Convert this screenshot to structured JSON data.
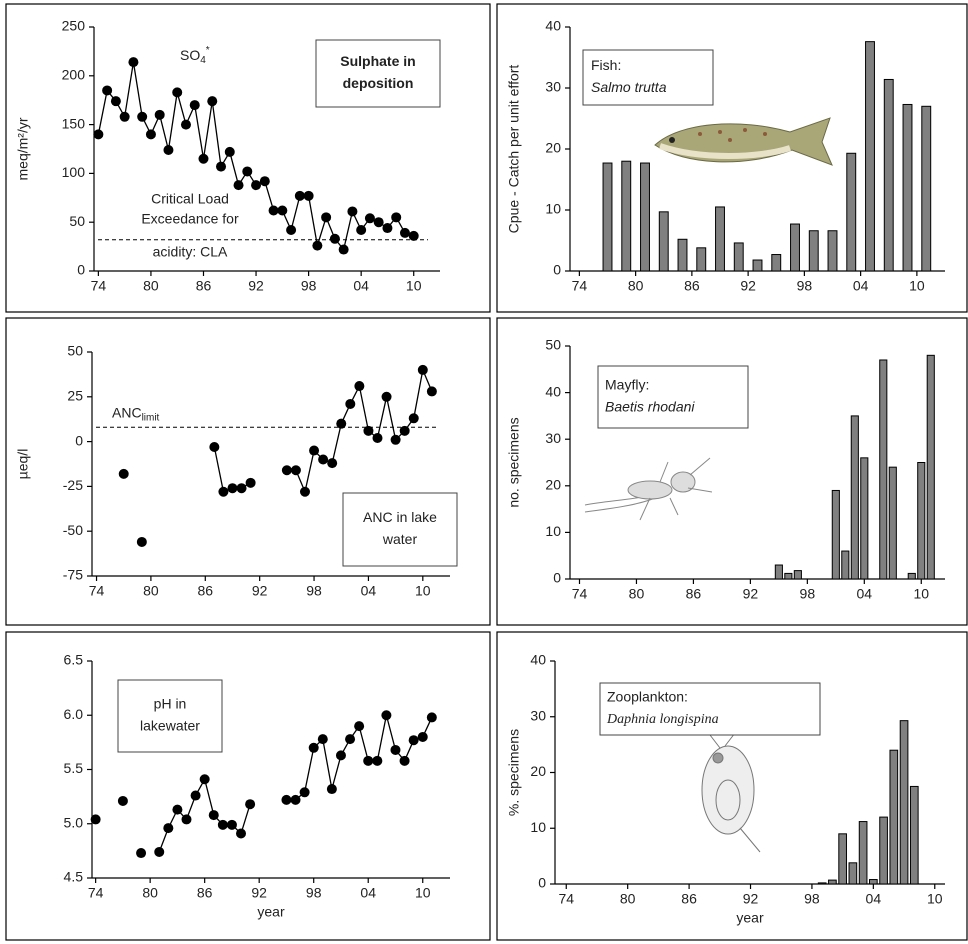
{
  "chart_data": [
    {
      "type": "line",
      "title_lines": [
        "Sulphate in",
        "deposition"
      ],
      "ylabel": "meq/m²/yr",
      "annotation": {
        "text": "SO",
        "sub": "4",
        "sup": "*"
      },
      "reference_line": {
        "value": 32,
        "label_lines": [
          "Critical Load",
          "Exceedance for",
          "acidity: CLA"
        ]
      },
      "color": "#000000",
      "x": [
        1974,
        1975,
        1976,
        1977,
        1978,
        1979,
        1980,
        1981,
        1982,
        1983,
        1984,
        1985,
        1986,
        1987,
        1988,
        1989,
        1990,
        1991,
        1992,
        1993,
        1994,
        1995,
        1996,
        1997,
        1998,
        1999,
        2000,
        2001,
        2002,
        2003,
        2004,
        2005,
        2006,
        2007,
        2008,
        2009,
        2010
      ],
      "values": [
        140,
        185,
        174,
        158,
        214,
        158,
        140,
        160,
        124,
        183,
        150,
        170,
        115,
        174,
        107,
        122,
        88,
        102,
        88,
        92,
        62,
        62,
        42,
        77,
        77,
        26,
        55,
        33,
        22,
        61,
        42,
        54,
        50,
        44,
        55,
        39,
        36
      ],
      "xlim": [
        1973.5,
        2013
      ],
      "ylim": [
        0,
        250
      ],
      "xticks": [
        {
          "value": 1974,
          "label": "74"
        },
        {
          "value": 1980,
          "label": "80"
        },
        {
          "value": 1986,
          "label": "86"
        },
        {
          "value": 1992,
          "label": "92"
        },
        {
          "value": 1998,
          "label": "98"
        },
        {
          "value": 2004,
          "label": "04"
        },
        {
          "value": 2010,
          "label": "10"
        }
      ],
      "yticks": [
        0,
        50,
        100,
        150,
        200,
        250
      ]
    },
    {
      "type": "bar",
      "title_lines": [
        "Fish:",
        "Salmo trutta"
      ],
      "ylabel": "Cpue - Catch per unit effort",
      "color": "#808080",
      "x": [
        1977,
        1979,
        1981,
        1983,
        1985,
        1987,
        1989,
        1991,
        1993,
        1995,
        1997,
        1999,
        2001,
        2003,
        2005,
        2007,
        2009,
        2011
      ],
      "values": [
        17.7,
        18,
        17.7,
        9.7,
        5.2,
        3.8,
        10.5,
        4.6,
        1.8,
        2.7,
        7.7,
        6.6,
        6.6,
        19.3,
        37.6,
        31.4,
        27.3,
        27
      ],
      "xlim": [
        1973,
        2013
      ],
      "ylim": [
        0,
        40
      ],
      "xticks": [
        {
          "value": 1974,
          "label": "74"
        },
        {
          "value": 1980,
          "label": "80"
        },
        {
          "value": 1986,
          "label": "86"
        },
        {
          "value": 1992,
          "label": "92"
        },
        {
          "value": 1998,
          "label": "98"
        },
        {
          "value": 2004,
          "label": "04"
        },
        {
          "value": 2010,
          "label": "10"
        }
      ],
      "yticks": [
        0,
        10,
        20,
        30,
        40
      ]
    },
    {
      "type": "line",
      "title_lines": [
        "ANC in lake",
        "water"
      ],
      "ylabel": "µeq/l",
      "color": "#000000",
      "reference_line": {
        "value": 8,
        "label": "ANC",
        "label_sub": "limit"
      },
      "x": [
        1977,
        1978,
        1979,
        1980,
        1987,
        1988,
        1989,
        1990,
        1991,
        1992,
        1995,
        1996,
        1997,
        1998,
        1999,
        2000,
        2001,
        2002,
        2003,
        2004,
        2005,
        2006,
        2007,
        2008,
        2009,
        2010,
        2011
      ],
      "values": [
        -18,
        null,
        -56,
        null,
        -3,
        -28,
        -26,
        -26,
        -23,
        null,
        -16,
        -16,
        -28,
        -5,
        -10,
        -12,
        10,
        21,
        31,
        6,
        2,
        25,
        1,
        6,
        13,
        40,
        28
      ],
      "xlim": [
        1973.5,
        2013
      ],
      "ylim": [
        -75,
        50
      ],
      "xticks": [
        {
          "value": 1974,
          "label": "74"
        },
        {
          "value": 1980,
          "label": "80"
        },
        {
          "value": 1986,
          "label": "86"
        },
        {
          "value": 1992,
          "label": "92"
        },
        {
          "value": 1998,
          "label": "98"
        },
        {
          "value": 2004,
          "label": "04"
        },
        {
          "value": 2010,
          "label": "10"
        }
      ],
      "yticks": [
        -75,
        -50,
        -25,
        0,
        25,
        50
      ]
    },
    {
      "type": "bar",
      "title_lines": [
        "Mayfly:",
        "Baetis rhodani"
      ],
      "ylabel": "no. specimens",
      "color": "#808080",
      "x": [
        1995,
        1996,
        1997,
        2001,
        2002,
        2003,
        2004,
        2006,
        2007,
        2009,
        2010,
        2011
      ],
      "values": [
        3,
        1.2,
        1.8,
        19,
        6,
        35,
        26,
        47,
        24,
        1.2,
        25,
        48
      ],
      "xlim": [
        1973,
        2012.5
      ],
      "ylim": [
        0,
        50
      ],
      "xticks": [
        {
          "value": 1974,
          "label": "74"
        },
        {
          "value": 1980,
          "label": "80"
        },
        {
          "value": 1986,
          "label": "86"
        },
        {
          "value": 1992,
          "label": "92"
        },
        {
          "value": 1998,
          "label": "98"
        },
        {
          "value": 2004,
          "label": "04"
        },
        {
          "value": 2010,
          "label": "10"
        }
      ],
      "yticks": [
        0,
        10,
        20,
        30,
        40,
        50
      ]
    },
    {
      "type": "line",
      "title_lines": [
        "pH in",
        "lakewater"
      ],
      "xlabel": "year",
      "color": "#000000",
      "x": [
        1974,
        1975,
        1977,
        1978,
        1979,
        1980,
        1981,
        1982,
        1983,
        1984,
        1985,
        1986,
        1987,
        1988,
        1989,
        1990,
        1991,
        1992,
        1995,
        1996,
        1997,
        1998,
        1999,
        2000,
        2001,
        2002,
        2003,
        2004,
        2005,
        2006,
        2007,
        2008,
        2009,
        2010,
        2011
      ],
      "values": [
        5.04,
        null,
        5.21,
        null,
        4.73,
        null,
        4.74,
        4.96,
        5.13,
        5.04,
        5.26,
        5.41,
        5.08,
        4.99,
        4.99,
        4.91,
        5.18,
        null,
        5.22,
        5.22,
        5.29,
        5.7,
        5.78,
        5.32,
        5.63,
        5.78,
        5.9,
        5.58,
        5.58,
        6.0,
        5.68,
        5.58,
        5.77,
        5.8,
        5.98
      ],
      "xlim": [
        1973.6,
        2013
      ],
      "ylim": [
        4.5,
        6.5
      ],
      "xticks": [
        {
          "value": 1974,
          "label": "74"
        },
        {
          "value": 1980,
          "label": "80"
        },
        {
          "value": 1986,
          "label": "86"
        },
        {
          "value": 1992,
          "label": "92"
        },
        {
          "value": 1998,
          "label": "98"
        },
        {
          "value": 2004,
          "label": "04"
        },
        {
          "value": 2010,
          "label": "10"
        }
      ],
      "yticks": [
        4.5,
        {
          "value": 5,
          "label": "5.0"
        },
        5.5,
        {
          "value": 6,
          "label": "6.0"
        },
        6.5
      ]
    },
    {
      "type": "bar",
      "title_lines": [
        "Zooplankton:",
        "Daphnia longispina"
      ],
      "ylabel": "%. specimens",
      "xlabel": "year",
      "color": "#808080",
      "x": [
        1999,
        2000,
        2001,
        2002,
        2003,
        2004,
        2005,
        2006,
        2007,
        2008
      ],
      "values": [
        0.2,
        0.7,
        9,
        3.8,
        11.2,
        0.8,
        12,
        24,
        29.3,
        17.5
      ],
      "xlim": [
        1972.9,
        2011
      ],
      "ylim": [
        0,
        40
      ],
      "xticks": [
        {
          "value": 1974,
          "label": "74"
        },
        {
          "value": 1980,
          "label": "80"
        },
        {
          "value": 1986,
          "label": "86"
        },
        {
          "value": 1992,
          "label": "92"
        },
        {
          "value": 1998,
          "label": "98"
        },
        {
          "value": 2004,
          "label": "04"
        },
        {
          "value": 2010,
          "label": "10"
        }
      ],
      "yticks": [
        0,
        10,
        20,
        30,
        40
      ]
    }
  ]
}
